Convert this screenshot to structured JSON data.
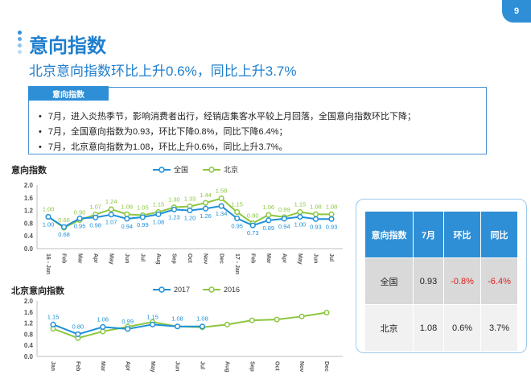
{
  "page_number": "9",
  "title": "意向指数",
  "subtitle": "北京意向指数环比上升0.6%，同比上升3.7%",
  "note": {
    "tab": "意向指数",
    "items": [
      "7月，进入炎热季节，影响消费者出行，经销店集客水平较上月回落，全国意向指数环比下降；",
      "7月，全国意向指数为0.93，环比下降0.8%，同比下降6.4%；",
      "7月，北京意向指数为1.08，环比上升0.6%，同比上升3.7%。"
    ]
  },
  "colors": {
    "blue": "#1e90d8",
    "green": "#8cc63f",
    "accent": "#2e8fd6",
    "negative": "#e02020"
  },
  "chart_data": [
    {
      "type": "line",
      "title": "意向指数",
      "categories": [
        "16 - Jan",
        "Feb",
        "Mar",
        "Apr",
        "May",
        "Jun",
        "Jul",
        "Aug",
        "Sep",
        "Oct",
        "Nov",
        "Dec",
        "17 - Jan",
        "Feb",
        "Mar",
        "Apr",
        "May",
        "Jun",
        "Jul"
      ],
      "ylim": [
        0,
        2.0
      ],
      "yticks": [
        "0.0",
        "0.4",
        "0.8",
        "1.2",
        "1.6",
        "2.0"
      ],
      "grid": false,
      "legend": "top",
      "series": [
        {
          "name": "全国",
          "color": "#1e90d8",
          "values": [
            1.0,
            0.68,
            0.95,
            0.98,
            1.07,
            0.94,
            0.99,
            1.08,
            1.23,
            1.2,
            1.26,
            1.34,
            0.95,
            0.73,
            0.89,
            0.94,
            1.0,
            0.93,
            0.93
          ],
          "labels": [
            "1.00",
            "0.68",
            "0.95",
            "0.98",
            "1.07",
            "0.94",
            "0.99",
            "1.08",
            "1.23",
            "1.20",
            "1.26",
            "1.34",
            "0.95",
            "0.73",
            "0.89",
            "0.94",
            "1.00",
            "0.93",
            "0.93"
          ]
        },
        {
          "name": "北京",
          "color": "#8cc63f",
          "values": [
            1.0,
            0.66,
            0.9,
            1.07,
            1.24,
            1.08,
            1.05,
            1.15,
            1.3,
            1.33,
            1.44,
            1.58,
            1.15,
            0.8,
            1.06,
            0.99,
            1.15,
            1.08,
            1.08
          ],
          "labels": [
            "1.00",
            "0.66",
            "0.90",
            "1.07",
            "1.24",
            "1.08",
            "1.05",
            "1.15",
            "1.30",
            "1.33",
            "1.44",
            "1.58",
            "1.15",
            "0.80",
            "1.06",
            "0.99",
            "1.15",
            "1.08",
            "1.08"
          ]
        }
      ]
    },
    {
      "type": "line",
      "title": "北京意向指数",
      "categories": [
        "Jan",
        "Feb",
        "Mar",
        "Apr",
        "May",
        "Jun",
        "Jul",
        "Aug",
        "Sep",
        "Oct",
        "Nov",
        "Dec"
      ],
      "ylim": [
        0,
        2.0
      ],
      "yticks": [
        "0.0",
        "0.4",
        "0.8",
        "1.2",
        "1.6",
        "2.0"
      ],
      "grid": false,
      "legend": "top",
      "series": [
        {
          "name": "2017",
          "color": "#1e90d8",
          "values": [
            1.15,
            0.8,
            1.06,
            0.99,
            1.15,
            1.08,
            1.08,
            null,
            null,
            null,
            null,
            null
          ],
          "labels": [
            "1.15",
            "0.80",
            "1.06",
            "0.99",
            "1.15",
            "1.08",
            "1.08",
            "",
            "",
            "",
            "",
            ""
          ]
        },
        {
          "name": "2016",
          "color": "#8cc63f",
          "values": [
            1.0,
            0.66,
            0.9,
            1.07,
            1.24,
            1.08,
            1.05,
            1.15,
            1.3,
            1.33,
            1.44,
            1.58
          ],
          "labels": [
            "",
            "",
            "",
            "",
            "",
            "",
            "",
            "",
            "",
            "",
            "",
            ""
          ]
        }
      ]
    }
  ],
  "table": {
    "headers": [
      "意向指数",
      "7月",
      "环比",
      "同比"
    ],
    "rows": [
      {
        "name": "全国",
        "month": "0.93",
        "mom": "-0.8%",
        "yoy": "-6.4%"
      },
      {
        "name": "北京",
        "month": "1.08",
        "mom": "0.6%",
        "yoy": "3.7%"
      }
    ]
  }
}
